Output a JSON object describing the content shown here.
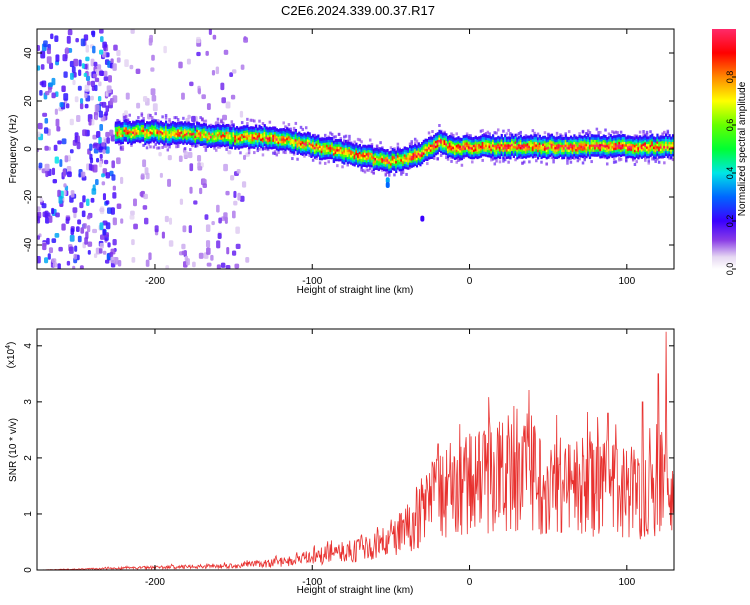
{
  "title": "C2E6.2024.339.00.37.R17",
  "chart_data": [
    {
      "type": "heatmap",
      "name": "spectrogram",
      "xlabel": "Height of straight line (km)",
      "ylabel": "Frequency (Hz)",
      "xlim": [
        -275,
        130
      ],
      "ylim": [
        -50,
        50
      ],
      "x_ticks": [
        -200,
        -100,
        0,
        100
      ],
      "y_ticks": [
        -40,
        -20,
        0,
        20,
        40
      ],
      "x_tick_labels": [
        "-200",
        "-100",
        "0",
        "100"
      ],
      "y_tick_labels": [
        "-40",
        "-20",
        "0",
        "20",
        "40"
      ],
      "colorbar": {
        "label": "Normalized spectral amplitude",
        "range": [
          0,
          1
        ],
        "ticks": [
          0.0,
          0.2,
          0.4,
          0.6,
          0.8
        ],
        "tick_labels": [
          "0.0",
          "0.2",
          "0.4",
          "0.6",
          "0.8"
        ]
      },
      "ridge": {
        "x": [
          -225,
          -200,
          -175,
          -150,
          -130,
          -110,
          -90,
          -75,
          -60,
          -50,
          -40,
          -30,
          -20,
          -10,
          0,
          20,
          40,
          60,
          80,
          100,
          115,
          130
        ],
        "y": [
          7,
          7,
          6,
          5,
          5,
          3,
          0,
          -2,
          -4,
          -5,
          -4,
          -2,
          3,
          0,
          1,
          1,
          1,
          1,
          1,
          1,
          1,
          1
        ]
      },
      "noise_regions": [
        {
          "x": [
            -275,
            -225
          ],
          "y": [
            -50,
            50
          ],
          "level": 0.35
        },
        {
          "x": [
            -225,
            -190
          ],
          "y": [
            -50,
            50
          ],
          "level": 0.1
        },
        {
          "x": [
            -185,
            -140
          ],
          "y": [
            -50,
            50
          ],
          "level": 0.12
        }
      ]
    },
    {
      "type": "line",
      "name": "snr",
      "xlabel": "Height of straight line (km)",
      "ylabel": "SNR (10 * v/v)",
      "y_multiplier": "(x10^4)",
      "xlim": [
        -275,
        130
      ],
      "ylim": [
        0,
        4.3
      ],
      "x_ticks": [
        -200,
        -100,
        0,
        100
      ],
      "y_ticks": [
        0,
        1,
        2,
        3,
        4
      ],
      "x_tick_labels": [
        "-200",
        "-100",
        "0",
        "100"
      ],
      "y_tick_labels": [
        "0",
        "1",
        "2",
        "3",
        "4"
      ],
      "color": "#e8312f",
      "envelope": {
        "x": [
          -275,
          -200,
          -150,
          -120,
          -100,
          -80,
          -60,
          -40,
          -30,
          -20,
          -10,
          0,
          10,
          20,
          40,
          60,
          80,
          100,
          110,
          120,
          125,
          130
        ],
        "y": [
          0.0,
          0.05,
          0.08,
          0.15,
          0.25,
          0.35,
          0.45,
          0.8,
          1.2,
          1.5,
          1.6,
          1.7,
          1.8,
          1.9,
          1.8,
          1.7,
          1.6,
          1.6,
          1.5,
          1.6,
          1.7,
          1.4
        ]
      },
      "peaks": [
        {
          "x": -20,
          "y": 2.25
        },
        {
          "x": 88,
          "y": 2.8
        },
        {
          "x": 110,
          "y": 3.0
        },
        {
          "x": 120,
          "y": 3.5
        },
        {
          "x": 125,
          "y": 4.25
        }
      ]
    }
  ]
}
